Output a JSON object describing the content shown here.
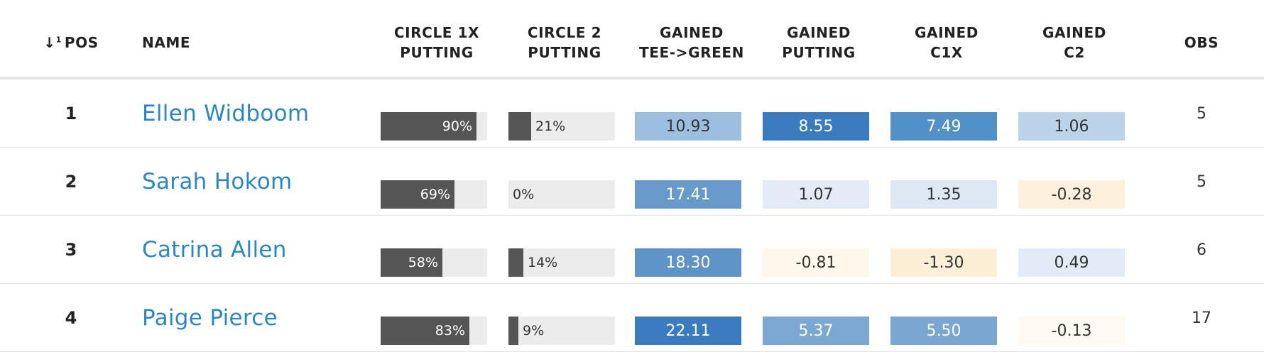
{
  "headers": {
    "pos": "POS",
    "name": "NAME",
    "circle1x": "CIRCLE 1X\nPUTTING",
    "circle2": "CIRCLE 2\nPUTTING",
    "tee_green": "GAINED\nTEE->GREEN",
    "gained_putting": "GAINED\nPUTTING",
    "gained_c1x": "GAINED\nC1X",
    "gained_c2": "GAINED\nC2",
    "obs": "OBS"
  },
  "sort_icon": "sort-ascending-numeric",
  "colors": {
    "name_link": "#2b86c5",
    "bar_fill": "#555555",
    "bar_track": "#ececec"
  },
  "rows": [
    {
      "pos": "1",
      "name": "Ellen Widboom",
      "c1x_pct": 90,
      "c1x_label": "90%",
      "c2_pct": 21,
      "c2_label": "21%",
      "tee_green": "10.93",
      "tee_green_color": "#9dbfdf",
      "tee_green_text": "#333333",
      "putting": "8.55",
      "putting_color": "#3a7bbf",
      "putting_text": "#ffffff",
      "c1x": "7.49",
      "c1x_color": "#5291c8",
      "c1x_text": "#ffffff",
      "c2": "1.06",
      "c2_color": "#bcd4ea",
      "c2_text": "#333333",
      "obs": "5"
    },
    {
      "pos": "2",
      "name": "Sarah Hokom",
      "c1x_pct": 69,
      "c1x_label": "69%",
      "c2_pct": 0,
      "c2_label": "0%",
      "tee_green": "17.41",
      "tee_green_color": "#6799ca",
      "tee_green_text": "#ffffff",
      "putting": "1.07",
      "putting_color": "#e3ecf6",
      "putting_text": "#333333",
      "c1x": "1.35",
      "c1x_color": "#dde8f4",
      "c1x_text": "#333333",
      "c2": "-0.28",
      "c2_color": "#fdf0dc",
      "c2_text": "#333333",
      "obs": "5"
    },
    {
      "pos": "3",
      "name": "Catrina Allen",
      "c1x_pct": 58,
      "c1x_label": "58%",
      "c2_pct": 14,
      "c2_label": "14%",
      "tee_green": "18.30",
      "tee_green_color": "#5d93c7",
      "tee_green_text": "#ffffff",
      "putting": "-0.81",
      "putting_color": "#fef7ec",
      "putting_text": "#333333",
      "c1x": "-1.30",
      "c1x_color": "#fdeed6",
      "c1x_text": "#333333",
      "c2": "0.49",
      "c2_color": "#e3ecf6",
      "c2_text": "#333333",
      "obs": "6"
    },
    {
      "pos": "4",
      "name": "Paige Pierce",
      "c1x_pct": 83,
      "c1x_label": "83%",
      "c2_pct": 9,
      "c2_label": "9%",
      "tee_green": "22.11",
      "tee_green_color": "#3a7bbf",
      "tee_green_text": "#ffffff",
      "putting": "5.37",
      "putting_color": "#7ba7d3",
      "putting_text": "#ffffff",
      "c1x": "5.50",
      "c1x_color": "#7aa6d2",
      "c1x_text": "#ffffff",
      "c2": "-0.13",
      "c2_color": "#fef9f1",
      "c2_text": "#333333",
      "obs": "17"
    }
  ]
}
